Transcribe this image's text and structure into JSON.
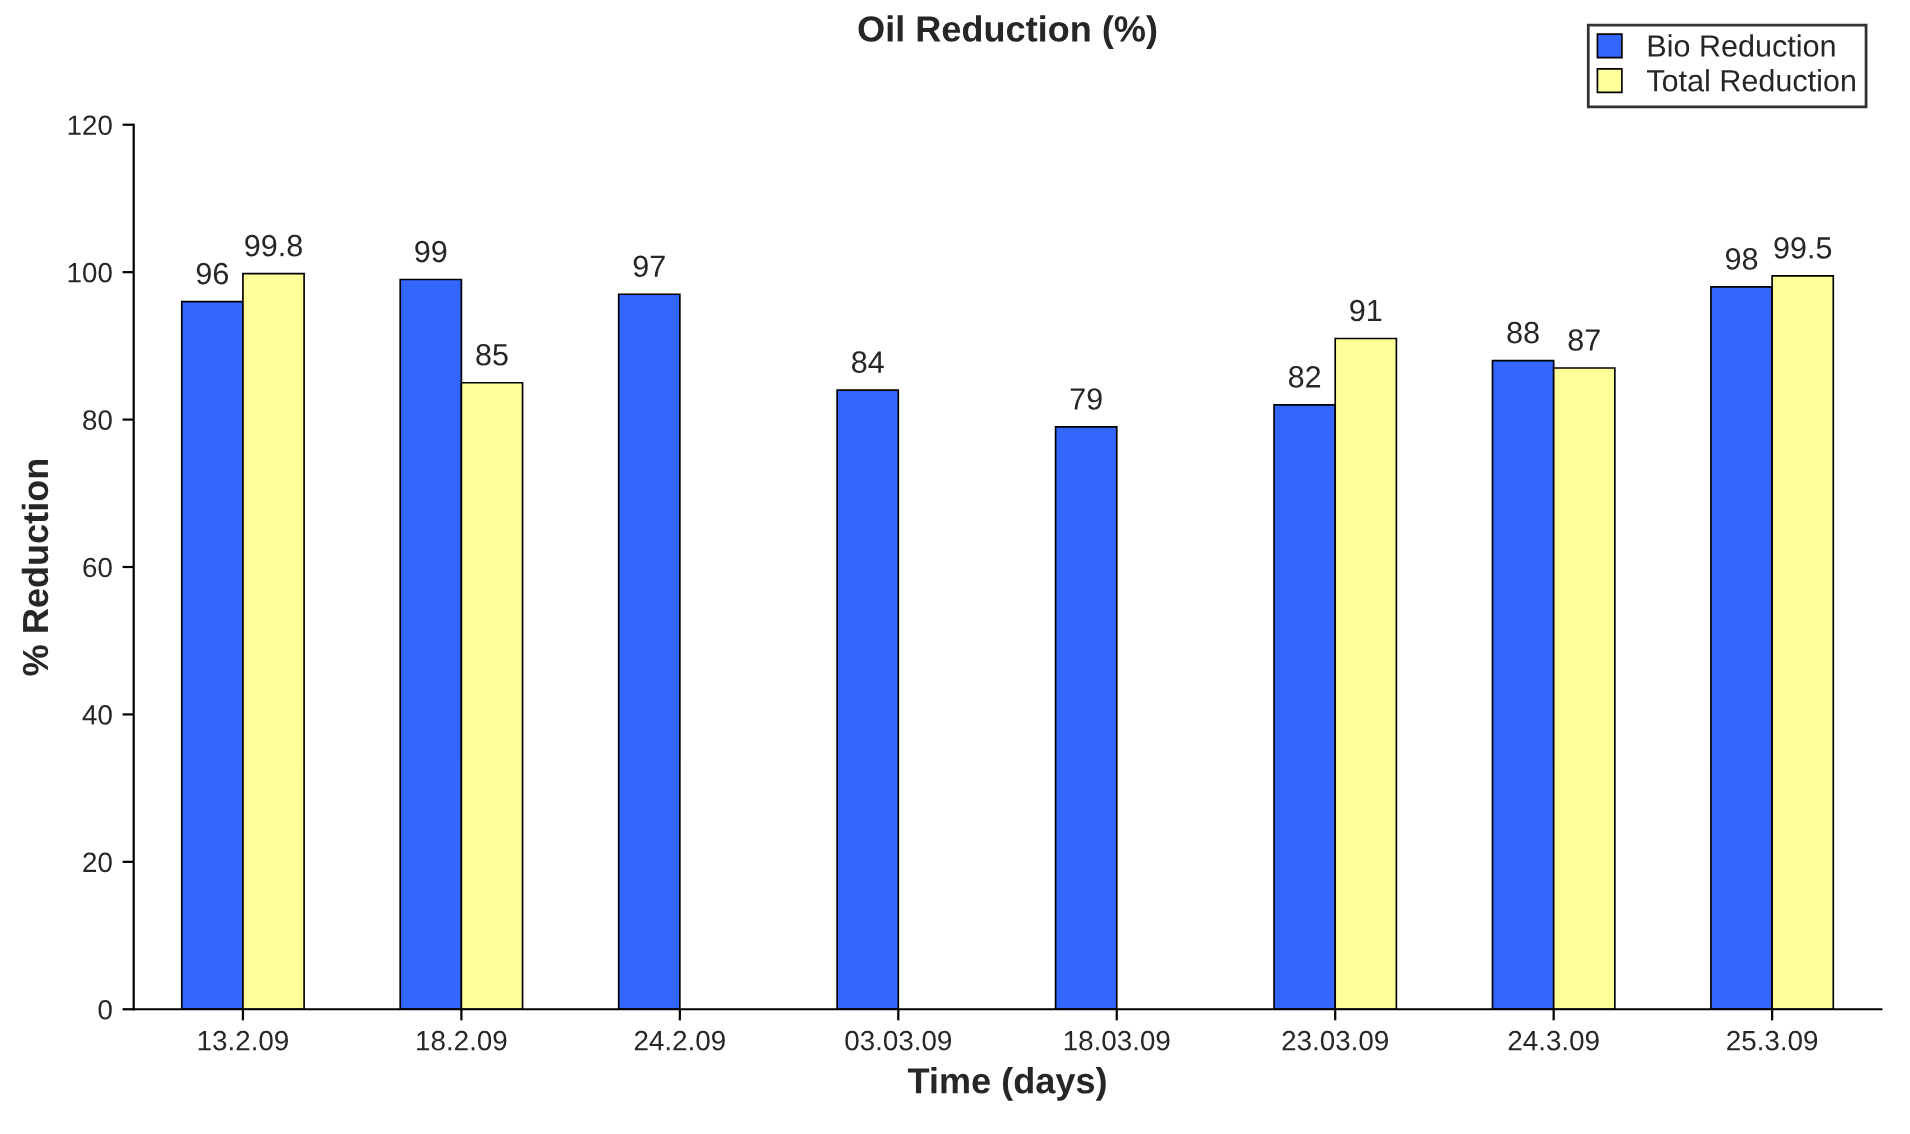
{
  "chart_data": {
    "type": "bar",
    "title": "Oil Reduction (%)",
    "xlabel": "Time (days)",
    "ylabel": "% Reduction",
    "categories": [
      "13.2.09",
      "18.2.09",
      "24.2.09",
      "03.03.09",
      "18.03.09",
      "23.03.09",
      "24.3.09",
      "25.3.09"
    ],
    "series": [
      {
        "name": "Bio Reduction",
        "color": "#3366ff",
        "values": [
          96,
          99,
          97,
          84,
          79,
          82,
          88,
          98
        ]
      },
      {
        "name": "Total Reduction",
        "color": "#ffff99",
        "values": [
          99.8,
          85,
          null,
          null,
          null,
          91,
          87,
          99.5
        ]
      }
    ],
    "ylim": [
      0,
      120
    ],
    "yticks": [
      0,
      20,
      40,
      60,
      80,
      100,
      120
    ],
    "grid": false,
    "legend": "top right",
    "data_labels": true
  }
}
